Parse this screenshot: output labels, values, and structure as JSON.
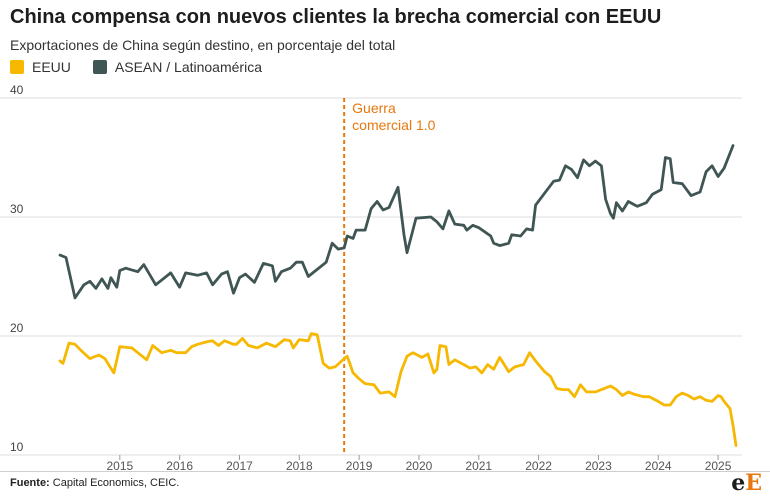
{
  "title": "China compensa con nuevos clientes la brecha comercial con EEUU",
  "subtitle": "Exportaciones de China según destino, en porcentaje del total",
  "legend": [
    {
      "label": "EEUU",
      "color": "#f6b800"
    },
    {
      "label": "ASEAN / Latinoamérica",
      "color": "#3f5654"
    }
  ],
  "source_label": "Fuente:",
  "source_text": "Capital Economics, CEIC.",
  "logo": {
    "part1": "e",
    "part2": "E"
  },
  "chart_data": {
    "type": "line",
    "title": "China compensa con nuevos clientes la brecha comercial con EEUU",
    "subtitle": "Exportaciones de China según destino, en porcentaje del total",
    "xlabel": "",
    "ylabel": "",
    "xlim": [
      2014.0,
      2025.4
    ],
    "ylim": [
      10,
      40
    ],
    "yticks": [
      10,
      20,
      30,
      40
    ],
    "xticks": [
      2015,
      2016,
      2017,
      2018,
      2019,
      2020,
      2021,
      2022,
      2023,
      2024,
      2025
    ],
    "grid": true,
    "legend_position": "top-left",
    "annotation": {
      "x": 2018.75,
      "lines": [
        "Guerra",
        "comercial 1.0"
      ],
      "color": "#e8770f"
    },
    "series": [
      {
        "name": "ASEAN / Latinoamérica",
        "color": "#3f5654",
        "points": [
          [
            2014.0,
            26.8
          ],
          [
            2014.1,
            26.6
          ],
          [
            2014.25,
            23.2
          ],
          [
            2014.4,
            24.3
          ],
          [
            2014.5,
            24.6
          ],
          [
            2014.6,
            24.0
          ],
          [
            2014.7,
            24.8
          ],
          [
            2014.8,
            24.0
          ],
          [
            2014.85,
            24.9
          ],
          [
            2014.95,
            24.1
          ],
          [
            2015.0,
            25.5
          ],
          [
            2015.1,
            25.7
          ],
          [
            2015.3,
            25.4
          ],
          [
            2015.4,
            26.0
          ],
          [
            2015.6,
            24.3
          ],
          [
            2015.85,
            25.3
          ],
          [
            2016.0,
            24.1
          ],
          [
            2016.1,
            25.3
          ],
          [
            2016.3,
            25.1
          ],
          [
            2016.45,
            25.3
          ],
          [
            2016.55,
            24.3
          ],
          [
            2016.7,
            25.2
          ],
          [
            2016.8,
            25.4
          ],
          [
            2016.9,
            23.6
          ],
          [
            2017.0,
            24.9
          ],
          [
            2017.1,
            25.2
          ],
          [
            2017.25,
            24.5
          ],
          [
            2017.4,
            26.1
          ],
          [
            2017.55,
            25.9
          ],
          [
            2017.6,
            24.6
          ],
          [
            2017.7,
            25.4
          ],
          [
            2017.85,
            25.7
          ],
          [
            2017.95,
            26.2
          ],
          [
            2018.05,
            26.2
          ],
          [
            2018.15,
            25.0
          ],
          [
            2018.3,
            25.6
          ],
          [
            2018.45,
            26.2
          ],
          [
            2018.55,
            27.8
          ],
          [
            2018.65,
            27.3
          ],
          [
            2018.75,
            27.4
          ],
          [
            2018.8,
            28.4
          ],
          [
            2018.9,
            28.2
          ],
          [
            2018.95,
            28.9
          ],
          [
            2019.1,
            28.9
          ],
          [
            2019.2,
            30.7
          ],
          [
            2019.3,
            31.3
          ],
          [
            2019.4,
            30.6
          ],
          [
            2019.5,
            30.8
          ],
          [
            2019.65,
            32.5
          ],
          [
            2019.75,
            28.5
          ],
          [
            2019.8,
            27.0
          ],
          [
            2019.95,
            29.9
          ],
          [
            2020.2,
            30.0
          ],
          [
            2020.3,
            29.6
          ],
          [
            2020.4,
            29.0
          ],
          [
            2020.5,
            30.5
          ],
          [
            2020.6,
            29.4
          ],
          [
            2020.75,
            29.3
          ],
          [
            2020.8,
            28.9
          ],
          [
            2020.9,
            29.3
          ],
          [
            2021.0,
            29.1
          ],
          [
            2021.2,
            28.4
          ],
          [
            2021.25,
            27.8
          ],
          [
            2021.35,
            27.6
          ],
          [
            2021.5,
            27.8
          ],
          [
            2021.55,
            28.5
          ],
          [
            2021.7,
            28.4
          ],
          [
            2021.8,
            29.0
          ],
          [
            2021.9,
            28.9
          ],
          [
            2021.95,
            31.0
          ],
          [
            2022.1,
            32.0
          ],
          [
            2022.25,
            33.0
          ],
          [
            2022.35,
            33.1
          ],
          [
            2022.45,
            34.3
          ],
          [
            2022.55,
            34.0
          ],
          [
            2022.65,
            33.3
          ],
          [
            2022.75,
            34.8
          ],
          [
            2022.85,
            34.3
          ],
          [
            2022.95,
            34.7
          ],
          [
            2023.05,
            34.3
          ],
          [
            2023.12,
            31.5
          ],
          [
            2023.2,
            30.3
          ],
          [
            2023.25,
            29.9
          ],
          [
            2023.3,
            31.2
          ],
          [
            2023.4,
            30.5
          ],
          [
            2023.5,
            31.3
          ],
          [
            2023.65,
            30.9
          ],
          [
            2023.8,
            31.2
          ],
          [
            2023.9,
            31.9
          ],
          [
            2024.05,
            32.3
          ],
          [
            2024.12,
            35.0
          ],
          [
            2024.2,
            34.9
          ],
          [
            2024.25,
            32.9
          ],
          [
            2024.4,
            32.8
          ],
          [
            2024.55,
            31.8
          ],
          [
            2024.7,
            32.1
          ],
          [
            2024.8,
            33.8
          ],
          [
            2024.9,
            34.3
          ],
          [
            2025.0,
            33.4
          ],
          [
            2025.1,
            34.1
          ],
          [
            2025.25,
            36.0
          ]
        ]
      },
      {
        "name": "EEUU",
        "color": "#f6b800",
        "points": [
          [
            2014.0,
            17.9
          ],
          [
            2014.05,
            17.7
          ],
          [
            2014.15,
            19.4
          ],
          [
            2014.25,
            19.3
          ],
          [
            2014.35,
            18.8
          ],
          [
            2014.5,
            18.1
          ],
          [
            2014.65,
            18.4
          ],
          [
            2014.75,
            18.1
          ],
          [
            2014.9,
            16.9
          ],
          [
            2015.0,
            19.1
          ],
          [
            2015.2,
            19.0
          ],
          [
            2015.3,
            18.6
          ],
          [
            2015.45,
            18.0
          ],
          [
            2015.55,
            19.2
          ],
          [
            2015.7,
            18.6
          ],
          [
            2015.85,
            18.8
          ],
          [
            2015.95,
            18.6
          ],
          [
            2016.1,
            18.6
          ],
          [
            2016.2,
            19.1
          ],
          [
            2016.3,
            19.3
          ],
          [
            2016.45,
            19.5
          ],
          [
            2016.55,
            19.6
          ],
          [
            2016.65,
            19.2
          ],
          [
            2016.75,
            19.6
          ],
          [
            2016.9,
            19.3
          ],
          [
            2016.95,
            19.3
          ],
          [
            2017.05,
            19.8
          ],
          [
            2017.15,
            19.2
          ],
          [
            2017.3,
            19.0
          ],
          [
            2017.45,
            19.4
          ],
          [
            2017.6,
            19.1
          ],
          [
            2017.75,
            19.7
          ],
          [
            2017.85,
            19.6
          ],
          [
            2017.9,
            19.0
          ],
          [
            2018.0,
            19.7
          ],
          [
            2018.15,
            19.6
          ],
          [
            2018.2,
            20.2
          ],
          [
            2018.3,
            20.1
          ],
          [
            2018.4,
            17.7
          ],
          [
            2018.5,
            17.3
          ],
          [
            2018.6,
            17.4
          ],
          [
            2018.75,
            18.1
          ],
          [
            2018.8,
            18.3
          ],
          [
            2018.9,
            16.9
          ],
          [
            2019.0,
            16.4
          ],
          [
            2019.1,
            16.0
          ],
          [
            2019.25,
            15.9
          ],
          [
            2019.35,
            15.2
          ],
          [
            2019.5,
            15.3
          ],
          [
            2019.6,
            14.9
          ],
          [
            2019.7,
            17.0
          ],
          [
            2019.8,
            18.3
          ],
          [
            2019.9,
            18.6
          ],
          [
            2020.05,
            18.2
          ],
          [
            2020.15,
            18.5
          ],
          [
            2020.25,
            16.9
          ],
          [
            2020.3,
            17.2
          ],
          [
            2020.35,
            19.2
          ],
          [
            2020.45,
            19.1
          ],
          [
            2020.5,
            17.6
          ],
          [
            2020.6,
            18.0
          ],
          [
            2020.75,
            17.6
          ],
          [
            2020.85,
            17.3
          ],
          [
            2020.95,
            17.4
          ],
          [
            2021.05,
            16.9
          ],
          [
            2021.15,
            17.6
          ],
          [
            2021.25,
            17.2
          ],
          [
            2021.35,
            18.2
          ],
          [
            2021.5,
            17.0
          ],
          [
            2021.6,
            17.4
          ],
          [
            2021.75,
            17.6
          ],
          [
            2021.85,
            18.6
          ],
          [
            2021.95,
            17.9
          ],
          [
            2022.1,
            17.0
          ],
          [
            2022.2,
            16.6
          ],
          [
            2022.3,
            15.6
          ],
          [
            2022.4,
            15.5
          ],
          [
            2022.5,
            15.5
          ],
          [
            2022.6,
            14.9
          ],
          [
            2022.7,
            15.9
          ],
          [
            2022.8,
            15.3
          ],
          [
            2022.95,
            15.3
          ],
          [
            2023.1,
            15.6
          ],
          [
            2023.2,
            15.8
          ],
          [
            2023.3,
            15.5
          ],
          [
            2023.4,
            15.0
          ],
          [
            2023.5,
            15.3
          ],
          [
            2023.6,
            15.1
          ],
          [
            2023.75,
            14.9
          ],
          [
            2023.85,
            14.9
          ],
          [
            2024.0,
            14.5
          ],
          [
            2024.1,
            14.2
          ],
          [
            2024.2,
            14.2
          ],
          [
            2024.3,
            14.9
          ],
          [
            2024.4,
            15.2
          ],
          [
            2024.5,
            15.0
          ],
          [
            2024.6,
            14.7
          ],
          [
            2024.7,
            14.9
          ],
          [
            2024.8,
            14.6
          ],
          [
            2024.9,
            14.5
          ],
          [
            2025.0,
            15.0
          ],
          [
            2025.05,
            14.9
          ],
          [
            2025.1,
            14.5
          ],
          [
            2025.2,
            13.9
          ],
          [
            2025.25,
            12.5
          ],
          [
            2025.3,
            10.8
          ]
        ]
      }
    ]
  }
}
